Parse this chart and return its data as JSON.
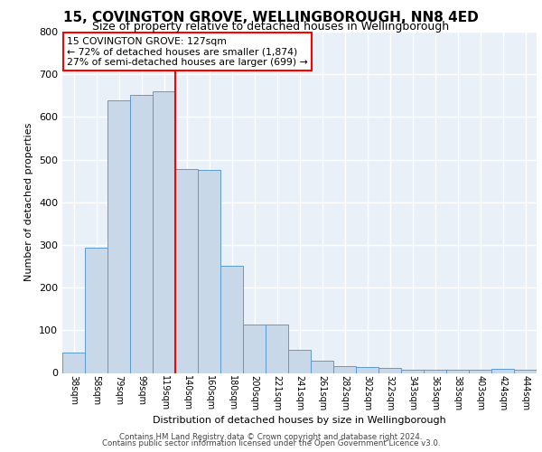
{
  "title1": "15, COVINGTON GROVE, WELLINGBOROUGH, NN8 4ED",
  "title2": "Size of property relative to detached houses in Wellingborough",
  "xlabel": "Distribution of detached houses by size in Wellingborough",
  "ylabel": "Number of detached properties",
  "categories": [
    "38sqm",
    "58sqm",
    "79sqm",
    "99sqm",
    "119sqm",
    "140sqm",
    "160sqm",
    "180sqm",
    "200sqm",
    "221sqm",
    "241sqm",
    "261sqm",
    "282sqm",
    "302sqm",
    "322sqm",
    "343sqm",
    "363sqm",
    "383sqm",
    "403sqm",
    "424sqm",
    "444sqm"
  ],
  "values": [
    48,
    294,
    638,
    652,
    660,
    478,
    475,
    252,
    113,
    113,
    53,
    28,
    15,
    14,
    12,
    8,
    8,
    8,
    8,
    10,
    8
  ],
  "bar_color": "#c8d8e8",
  "bar_edge_color": "#5b9bd5",
  "red_line_x": 4.5,
  "annotation_text": "15 COVINGTON GROVE: 127sqm\n← 72% of detached houses are smaller (1,874)\n27% of semi-detached houses are larger (699) →",
  "annotation_box_color": "white",
  "annotation_box_edge_color": "red",
  "red_line_color": "red",
  "footer1": "Contains HM Land Registry data © Crown copyright and database right 2024.",
  "footer2": "Contains public sector information licensed under the Open Government Licence v3.0.",
  "ylim": [
    0,
    800
  ],
  "yticks": [
    0,
    100,
    200,
    300,
    400,
    500,
    600,
    700,
    800
  ],
  "bg_color": "#eaf0f8",
  "grid_color": "white",
  "title1_fontsize": 11,
  "title2_fontsize": 9
}
